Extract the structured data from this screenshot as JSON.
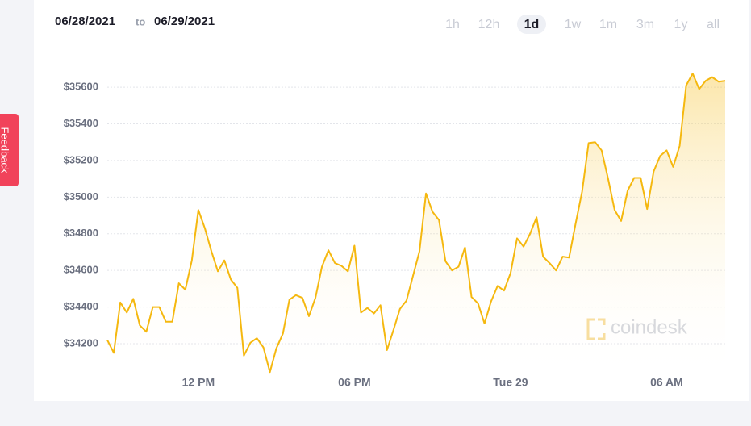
{
  "feedback": "Feedback",
  "range": {
    "from": "06/28/2021",
    "sep": "to",
    "to": "06/29/2021"
  },
  "buttons": [
    "1h",
    "12h",
    "1d",
    "1w",
    "1m",
    "3m",
    "1y",
    "all"
  ],
  "active_button": 2,
  "watermark": "coindesk",
  "chart_data": {
    "type": "area",
    "color": "#f5b80f",
    "grid": true,
    "values": [
      34220,
      34150,
      34425,
      34370,
      34445,
      34300,
      34265,
      34400,
      34400,
      34320,
      34320,
      34530,
      34495,
      34655,
      34930,
      34830,
      34705,
      34595,
      34655,
      34550,
      34505,
      34135,
      34205,
      34230,
      34180,
      34045,
      34175,
      34255,
      34440,
      34465,
      34450,
      34350,
      34450,
      34620,
      34710,
      34640,
      34625,
      34595,
      34735,
      34370,
      34395,
      34365,
      34410,
      34165,
      34275,
      34390,
      34435,
      34570,
      34705,
      35020,
      34920,
      34875,
      34650,
      34600,
      34620,
      34725,
      34455,
      34420,
      34310,
      34430,
      34515,
      34490,
      34585,
      34775,
      34730,
      34800,
      34890,
      34675,
      34640,
      34600,
      34675,
      34670,
      34855,
      35030,
      35295,
      35300,
      35255,
      35100,
      34930,
      34870,
      35035,
      35105,
      35105,
      34935,
      35140,
      35225,
      35255,
      35165,
      35280,
      35610,
      35675,
      35590,
      35635,
      35655,
      35630,
      35635
    ],
    "ylim": [
      34000,
      35700
    ],
    "yticks": [
      {
        "value": 34200,
        "label": "$34200"
      },
      {
        "value": 34400,
        "label": "$34400"
      },
      {
        "value": 34600,
        "label": "$34600"
      },
      {
        "value": 34800,
        "label": "$34800"
      },
      {
        "value": 35000,
        "label": "$35000"
      },
      {
        "value": 35200,
        "label": "$35200"
      },
      {
        "value": 35400,
        "label": "$35400"
      },
      {
        "value": 35600,
        "label": "$35600"
      }
    ],
    "xticks": [
      {
        "value": 14,
        "label": "12 PM"
      },
      {
        "value": 38,
        "label": "06 PM"
      },
      {
        "value": 62,
        "label": "Tue 29"
      },
      {
        "value": 86,
        "label": "06 AM"
      }
    ]
  }
}
